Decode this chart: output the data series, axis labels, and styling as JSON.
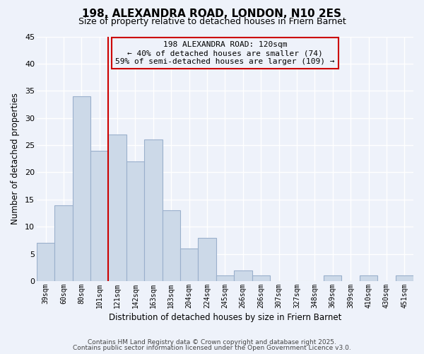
{
  "title": "198, ALEXANDRA ROAD, LONDON, N10 2ES",
  "subtitle": "Size of property relative to detached houses in Friern Barnet",
  "xlabel": "Distribution of detached houses by size in Friern Barnet",
  "ylabel": "Number of detached properties",
  "bar_color": "#ccd9e8",
  "bar_edgecolor": "#9ab0cc",
  "background_color": "#eef2fa",
  "grid_color": "#ffffff",
  "bins": [
    "39sqm",
    "60sqm",
    "80sqm",
    "101sqm",
    "121sqm",
    "142sqm",
    "163sqm",
    "183sqm",
    "204sqm",
    "224sqm",
    "245sqm",
    "266sqm",
    "286sqm",
    "307sqm",
    "327sqm",
    "348sqm",
    "369sqm",
    "389sqm",
    "410sqm",
    "430sqm",
    "451sqm"
  ],
  "values": [
    7,
    14,
    34,
    24,
    27,
    22,
    26,
    13,
    6,
    8,
    1,
    2,
    1,
    0,
    0,
    0,
    1,
    0,
    1,
    0,
    1
  ],
  "ylim": [
    0,
    45
  ],
  "yticks": [
    0,
    5,
    10,
    15,
    20,
    25,
    30,
    35,
    40,
    45
  ],
  "marker_bar_index": 4,
  "marker_color": "#cc0000",
  "annotation_title": "198 ALEXANDRA ROAD: 120sqm",
  "annotation_line1": "← 40% of detached houses are smaller (74)",
  "annotation_line2": "59% of semi-detached houses are larger (109) →",
  "footer1": "Contains HM Land Registry data © Crown copyright and database right 2025.",
  "footer2": "Contains public sector information licensed under the Open Government Licence v3.0."
}
